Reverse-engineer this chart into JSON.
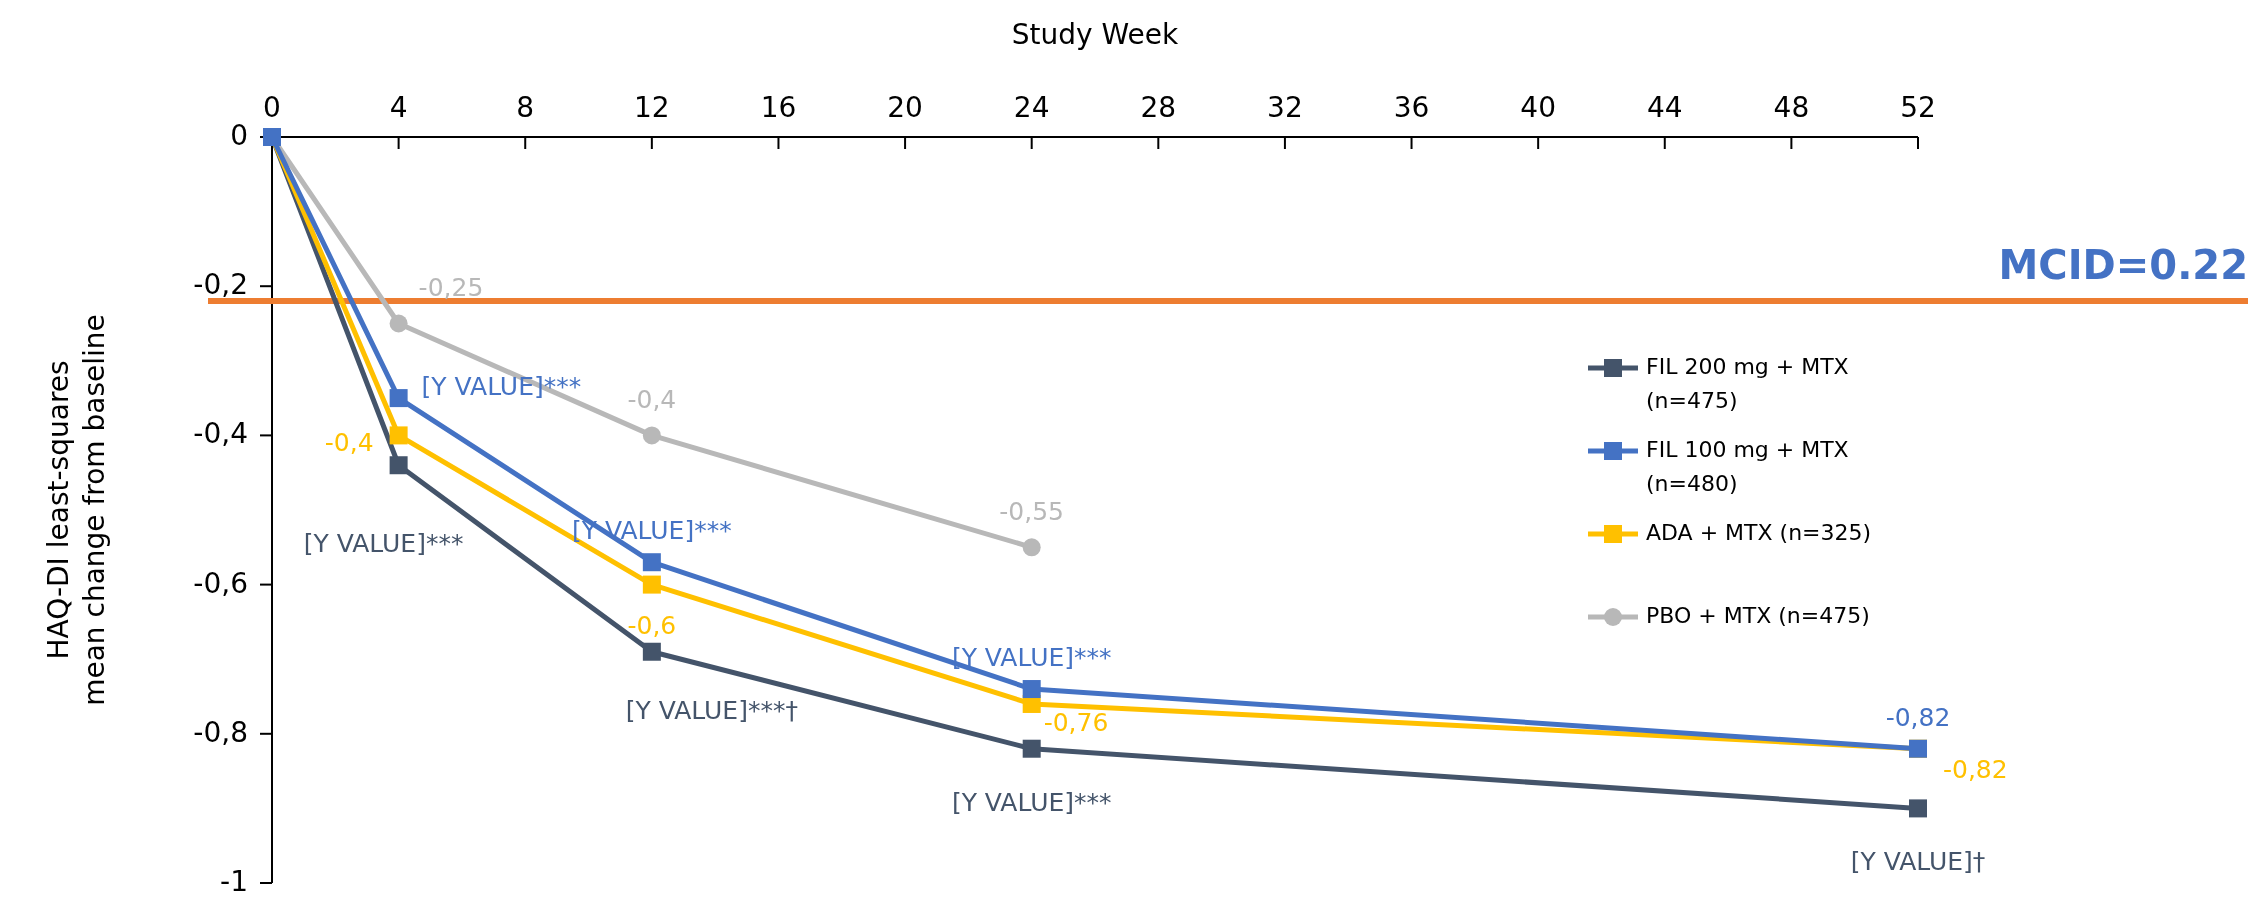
{
  "chart_data": {
    "type": "line",
    "xlabel": "Study Week",
    "ylabel": "HAQ-DI least-squares\nmean change from baseline",
    "xlim": [
      0,
      52
    ],
    "xticks": [
      0,
      4,
      8,
      12,
      16,
      20,
      24,
      28,
      32,
      36,
      40,
      44,
      48,
      52
    ],
    "ylim": [
      -1,
      0
    ],
    "yticks": [
      0,
      {
        "value": -0.2,
        "label": "-0,2"
      },
      {
        "value": -0.4,
        "label": "-0,4"
      },
      {
        "value": -0.6,
        "label": "-0,6"
      },
      {
        "value": -0.8,
        "label": "-0,8"
      },
      -1
    ],
    "legend": "right",
    "grid": false,
    "line_style": "solid",
    "ref_lines": [
      {
        "axis": "y",
        "value": -0.22,
        "color": "#ed7d31"
      }
    ],
    "annotations": [
      "MCID=0.22"
    ],
    "series": [
      {
        "name": "PBO + MTX (n=475)",
        "color": "#b8b8b8",
        "marker": "circle",
        "x": [
          0,
          4,
          12,
          24
        ],
        "values": [
          0,
          -0.25,
          -0.4,
          -0.55
        ],
        "value_labels": [
          null,
          "-0,25",
          "-0,4",
          "-0,55"
        ]
      },
      {
        "name": "FIL 200 mg + MTX (n=475)",
        "color": "#44546a",
        "marker": "square",
        "x": [
          0,
          4,
          12,
          24,
          52
        ],
        "values": [
          0,
          -0.44,
          -0.69,
          -0.82,
          -0.9
        ],
        "value_labels": [
          null,
          "[Y VALUE]***",
          "[Y VALUE]***†",
          "[Y VALUE]***",
          "[Y VALUE]†"
        ]
      },
      {
        "name": "ADA + MTX (n=325)",
        "color": "#ffc000",
        "marker": "square",
        "x": [
          0,
          4,
          12,
          24,
          52
        ],
        "values": [
          0,
          -0.4,
          -0.6,
          -0.76,
          -0.82
        ],
        "value_labels": [
          null,
          "-0,4",
          "-0,6",
          "-0,76",
          "-0,82"
        ]
      },
      {
        "name": "FIL 100 mg + MTX (n=480)",
        "color": "#4472c4",
        "marker": "square",
        "x": [
          0,
          4,
          12,
          24,
          52
        ],
        "values": [
          0,
          -0.35,
          -0.57,
          -0.74,
          -0.82
        ],
        "value_labels": [
          null,
          "[Y VALUE]***",
          "[Y VALUE]***",
          "[Y VALUE]***",
          "-0,82"
        ]
      }
    ]
  }
}
